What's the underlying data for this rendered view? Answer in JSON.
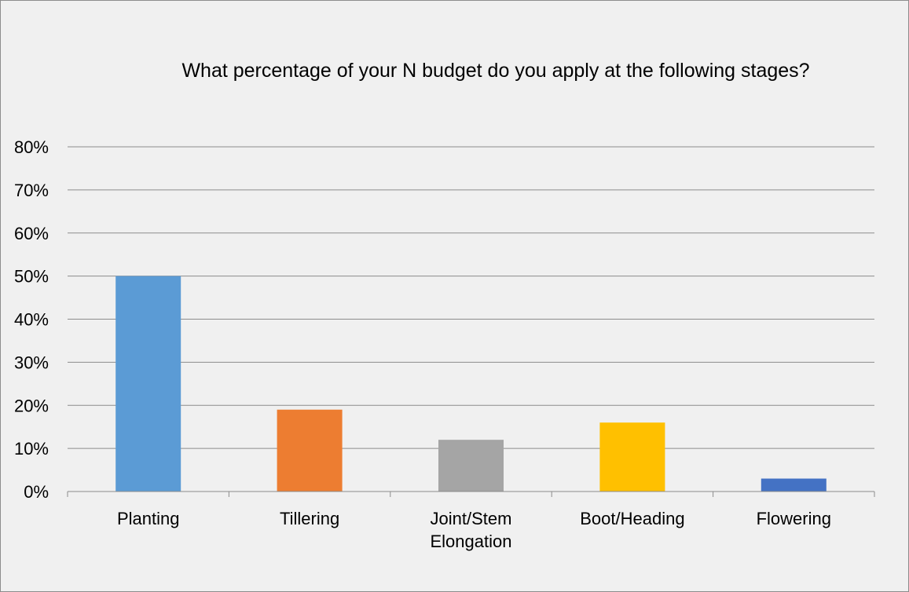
{
  "chart_data": {
    "type": "bar",
    "title": "What percentage of your N budget do you apply at the following stages?",
    "categories": [
      "Planting",
      "Tillering",
      "Joint/Stem Elongation",
      "Boot/Heading",
      "Flowering"
    ],
    "category_lines": [
      [
        "Planting"
      ],
      [
        "Tillering"
      ],
      [
        "Joint/Stem",
        "Elongation"
      ],
      [
        "Boot/Heading"
      ],
      [
        "Flowering"
      ]
    ],
    "values": [
      0.5,
      0.19,
      0.12,
      0.16,
      0.03
    ],
    "colors": [
      "#5b9bd5",
      "#ed7d31",
      "#a5a5a5",
      "#ffc000",
      "#4472c4"
    ],
    "ylim": [
      0,
      0.8
    ],
    "yticks": [
      0,
      0.1,
      0.2,
      0.3,
      0.4,
      0.5,
      0.6,
      0.7,
      0.8
    ],
    "ytick_labels": [
      "0%",
      "10%",
      "20%",
      "30%",
      "40%",
      "50%",
      "60%",
      "70%",
      "80%"
    ],
    "xlabel": "",
    "ylabel": "",
    "grid": true,
    "legend": "none"
  }
}
